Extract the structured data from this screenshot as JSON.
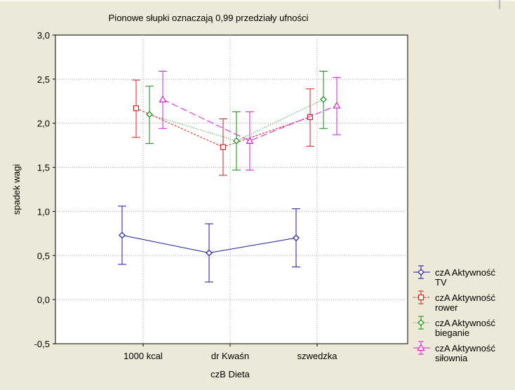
{
  "chart_data": {
    "type": "line",
    "title": "Pionowe słupki oznaczają 0,99 przedziały ufności",
    "xlabel": "czB Dieta",
    "ylabel": "spadek wagi",
    "categories": [
      "1000 kcal",
      "dr Kwaśn",
      "szwedzka"
    ],
    "ylim": [
      -0.5,
      3.0
    ],
    "yticks": [
      3.0,
      2.5,
      2.0,
      1.5,
      1.0,
      0.5,
      0.0,
      -0.5
    ],
    "ytick_labels": [
      "3,0",
      "2,5",
      "2,0",
      "1,5",
      "1,0",
      "0,5",
      "0,0",
      "-0,5"
    ],
    "grid": true,
    "legend_position": "right",
    "error_bars": "0.99 confidence interval",
    "series": [
      {
        "name": "czA Aktywność TV",
        "legend_line1": "czA Aktywność",
        "legend_line2": "TV",
        "color": "#1a1aa0",
        "marker": "diamond",
        "dash": "",
        "values": [
          0.73,
          0.53,
          0.7
        ],
        "ci_lower": [
          0.4,
          0.2,
          0.37
        ],
        "ci_upper": [
          1.06,
          0.86,
          1.03
        ]
      },
      {
        "name": "czA Aktywność rower",
        "legend_line1": "czA Aktywność",
        "legend_line2": "rower",
        "color": "#d42020",
        "marker": "square",
        "dash": "3,2",
        "values": [
          2.17,
          1.73,
          2.07
        ],
        "ci_lower": [
          1.84,
          1.41,
          1.74
        ],
        "ci_upper": [
          2.49,
          2.05,
          2.39
        ]
      },
      {
        "name": "czA Aktywność bieganie",
        "legend_line1": "czA Aktywność",
        "legend_line2": "bieganie",
        "color": "#108a10",
        "marker": "diamond",
        "dash": "1,2",
        "values": [
          2.1,
          1.8,
          2.27
        ],
        "ci_lower": [
          1.77,
          1.47,
          1.94
        ],
        "ci_upper": [
          2.42,
          2.13,
          2.59
        ]
      },
      {
        "name": "czA Aktywność siłownia",
        "legend_line1": "czA Aktywność",
        "legend_line2": "siłownia",
        "color": "#d020d0",
        "marker": "triangle",
        "dash": "10,4",
        "values": [
          2.27,
          1.8,
          2.2
        ],
        "ci_lower": [
          1.94,
          1.47,
          1.87
        ],
        "ci_upper": [
          2.59,
          2.13,
          2.52
        ]
      }
    ]
  }
}
